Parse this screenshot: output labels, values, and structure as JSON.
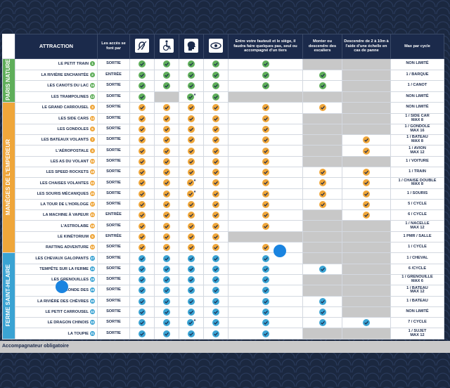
{
  "header": {
    "attraction": "ATTRACTION",
    "access": "Les accès se font par",
    "transfer": "Entre votre fauteuil et le siège, il faudra faire quelques pas, seul ou accompagné d'un tiers",
    "stairs": "Monter ou descendre des escaliers",
    "ladder": "Descendre de 2 à 10m à l'aide d'une échelle en cas de panne",
    "max": "Max par cycle"
  },
  "sections": [
    {
      "label": "PARIS NATURE",
      "color": "#5fae5a",
      "rows": [
        {
          "name": "LE PETIT TRAIN",
          "number": 1,
          "access": "SORTIE",
          "cells": [
            1,
            1,
            1,
            1,
            1,
            0,
            0
          ],
          "max": [
            "NON LIMITÉ"
          ]
        },
        {
          "name": "LA RIVIÈRE ENCHANTÉE",
          "number": 2,
          "access": "ENTRÉE",
          "cells": [
            1,
            1,
            1,
            1,
            1,
            1,
            0
          ],
          "max": [
            "1 / BARQUE"
          ]
        },
        {
          "name": "LES CANOTS DU LAC",
          "number": 16,
          "access": "SORTIE",
          "cells": [
            1,
            1,
            1,
            1,
            1,
            1,
            0
          ],
          "max": [
            "1 / CANOT"
          ]
        },
        {
          "name": "LES TRAMPOLINES",
          "number": 13,
          "access": "SORTIE",
          "cells": [
            1,
            0,
            "*",
            1,
            0,
            0,
            0
          ],
          "max": [
            "NON LIMITÉ"
          ]
        }
      ]
    },
    {
      "label": "MANÈGES DE L'EMPEREUR",
      "color": "#efa63a",
      "rows": [
        {
          "name": "LE GRAND CARROUSEL",
          "number": 3,
          "access": "SORTIE",
          "cells": [
            1,
            1,
            1,
            1,
            1,
            1,
            0
          ],
          "max": [
            "NON LIMITÉ"
          ]
        },
        {
          "name": "LES SIDE CARS",
          "number": 14,
          "access": "SORTIE",
          "cells": [
            1,
            1,
            1,
            1,
            1,
            0,
            0
          ],
          "max": [
            "1 / SIDE CAR",
            "MAX 8"
          ]
        },
        {
          "name": "LES GONDOLES",
          "number": 6,
          "access": "SORTIE",
          "cells": [
            1,
            1,
            1,
            1,
            1,
            0,
            0
          ],
          "max": [
            "1 / GONDOLE",
            "MAX 16"
          ]
        },
        {
          "name": "LES BATEAUX VOLANTS",
          "number": 7,
          "access": "SORTIE",
          "cells": [
            1,
            1,
            1,
            1,
            1,
            0,
            1
          ],
          "max": [
            "1 / BATEAU",
            "MAX 8"
          ]
        },
        {
          "name": "L'AÉROPOSTALE",
          "number": 4,
          "access": "SORTIE",
          "cells": [
            1,
            1,
            1,
            1,
            1,
            0,
            1
          ],
          "max": [
            "1 / AVION",
            "MAX 12"
          ]
        },
        {
          "name": "LES AS DU VOLANT",
          "number": 24,
          "access": "SORTIE",
          "cells": [
            1,
            1,
            1,
            1,
            1,
            0,
            0
          ],
          "max": [
            "1 / VOITURE"
          ]
        },
        {
          "name": "LES SPEED ROCKETS",
          "number": 18,
          "access": "SORTIE",
          "cells": [
            1,
            1,
            1,
            1,
            1,
            1,
            1
          ],
          "max": [
            "1 / TRAIN"
          ]
        },
        {
          "name": "LES CHAISES VOLANTES",
          "number": 22,
          "access": "SORTIE",
          "cells": [
            1,
            1,
            "*",
            1,
            1,
            1,
            1
          ],
          "max": [
            "1 / CHAISE DOUBLE",
            "MAX 8"
          ]
        },
        {
          "name": "LES SOURIS MÉCANIQUES",
          "number": 20,
          "access": "SORTIE",
          "cells": [
            1,
            1,
            "*",
            1,
            1,
            1,
            1
          ],
          "max": [
            "1 / SOURIS"
          ]
        },
        {
          "name": "LA TOUR DE L'HORLOGE",
          "number": 17,
          "access": "SORTIE",
          "cells": [
            1,
            1,
            1,
            1,
            1,
            1,
            1
          ],
          "max": [
            "5 / CYCLE"
          ]
        },
        {
          "name": "LA MACHINE À VAPEUR",
          "number": 21,
          "access": "ENTRÉE",
          "cells": [
            1,
            1,
            1,
            1,
            1,
            0,
            1
          ],
          "max": [
            "6 / CYCLE"
          ]
        },
        {
          "name": "L'ASTROLABE",
          "number": 19,
          "access": "SORTIE",
          "cells": [
            1,
            1,
            1,
            1,
            1,
            0,
            0
          ],
          "max": [
            "1 / NACELLE",
            "MAX 12"
          ]
        },
        {
          "name": "LE KINÉTORIUM",
          "number": 5,
          "access": "ENTRÉE",
          "cells": [
            1,
            1,
            1,
            1,
            0,
            0,
            0
          ],
          "max": [
            "1 PMR / SALLE"
          ]
        },
        {
          "name": "RAFTING ADVENTURE",
          "number": 12,
          "access": "SORTIE",
          "cells": [
            1,
            1,
            1,
            1,
            1,
            0,
            0
          ],
          "max": [
            "1 / CYCLE"
          ]
        }
      ]
    },
    {
      "label": "FERME SAINT-HILAIRE",
      "color": "#3aa3d3",
      "rows": [
        {
          "name": "LES CHEVAUX GALOPANTS",
          "number": 27,
          "access": "SORTIE",
          "cells": [
            1,
            1,
            1,
            1,
            1,
            0,
            0
          ],
          "max": [
            "1 / CHEVAL"
          ]
        },
        {
          "name": "TEMPÊTE SUR LA FERME",
          "number": 15,
          "access": "SORTIE",
          "cells": [
            1,
            1,
            1,
            1,
            1,
            1,
            0
          ],
          "max": [
            "6 /CYCLE"
          ]
        },
        {
          "name": "LES GRENOUILLES",
          "number": 28,
          "access": "SORTIE",
          "cells": [
            1,
            1,
            1,
            1,
            1,
            0,
            0
          ],
          "max": [
            "1 / GRENOUILLE",
            "MAX 6"
          ]
        },
        {
          "name": "LA RONDE DES",
          "number": 29,
          "access": "SORTIE",
          "cells": [
            1,
            1,
            1,
            1,
            1,
            0,
            0
          ],
          "max": [
            "1 / BATEAU",
            "MAX 12"
          ]
        },
        {
          "name": "LA RIVIÈRE DES CHÈVRES",
          "number": 30,
          "access": "SORTIE",
          "cells": [
            1,
            1,
            1,
            1,
            1,
            1,
            0
          ],
          "max": [
            "1 / BATEAU"
          ]
        },
        {
          "name": "LE PETIT CARROUSEL",
          "number": 32,
          "access": "SORTIE",
          "cells": [
            1,
            1,
            1,
            1,
            1,
            1,
            0
          ],
          "max": [
            "NON LIMITÉ"
          ]
        },
        {
          "name": "LE DRAGON CHINOIS",
          "number": 33,
          "access": "SORTIE",
          "cells": [
            1,
            1,
            "*",
            1,
            1,
            1,
            1
          ],
          "max": [
            "7 / CYCLE"
          ]
        },
        {
          "name": "LA TOUPIE",
          "number": 31,
          "access": "SORTIE",
          "cells": [
            1,
            1,
            1,
            1,
            1,
            0,
            0
          ],
          "max": [
            "1 / SUJET",
            "MAX 12"
          ]
        }
      ]
    }
  ],
  "footer": "Accompagnateur obligatoire"
}
